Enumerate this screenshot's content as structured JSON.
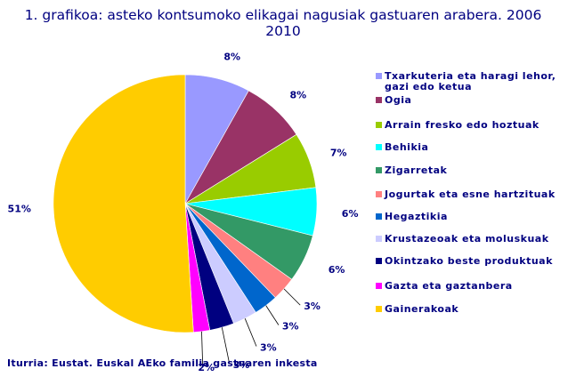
{
  "chart_data": {
    "type": "pie",
    "title_line1": "1. grafikoa: asteko kontsumoko elikagai nagusiak gastuaren arabera. 2006",
    "title_line2": "2010",
    "categories": [
      "Txarkuteria eta haragi lehor, gazi edo ketua",
      "Ogia",
      "Arrain fresko edo hoztuak",
      "Behikia",
      "Zigarretak",
      "Jogurtak eta esne hartzituak",
      "Hegaztikia",
      "Krustazeoak eta moluskuak",
      "Okintzako beste produktuak",
      "Gazta eta gaztanbera",
      "Gainerakoak"
    ],
    "values": [
      8,
      8,
      7,
      6,
      6,
      3,
      3,
      3,
      3,
      2,
      51
    ],
    "value_labels": [
      "8%",
      "8%",
      "7%",
      "6%",
      "6%",
      "3%",
      "3%",
      "3%",
      "3%",
      "2%",
      "51%"
    ],
    "colors": [
      "#9999ff",
      "#993366",
      "#99cc00",
      "#00ffff",
      "#339966",
      "#ff8080",
      "#0066cc",
      "#ccccff",
      "#000080",
      "#ff00ff",
      "#ffcc00"
    ],
    "legend_position": "right",
    "source": "Iturria: Eustat. Euskal AEko familia gastuaren inkesta"
  }
}
